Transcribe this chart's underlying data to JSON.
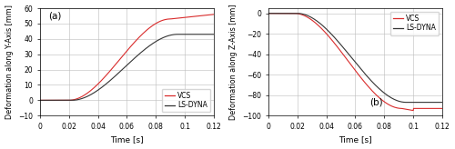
{
  "panel_a": {
    "title": "(a)",
    "xlabel": "Time [s]",
    "ylabel": "Deformation along Y-Axis [mm]",
    "xlim": [
      0,
      0.12
    ],
    "ylim": [
      -10,
      60
    ],
    "yticks": [
      -10,
      0,
      10,
      20,
      30,
      40,
      50,
      60
    ],
    "xticks": [
      0,
      0.02,
      0.04,
      0.06,
      0.08,
      0.1,
      0.12
    ],
    "xtick_labels": [
      "0",
      "0.02",
      "0.04",
      "0.06",
      "0.08",
      "0.1",
      "0.12"
    ],
    "vcs_color": "#d92b2b",
    "lsdyna_color": "#333333"
  },
  "panel_b": {
    "title": "(b)",
    "xlabel": "Time [s]",
    "ylabel": "Deformation along Z-Axis [mm]",
    "xlim": [
      0,
      0.12
    ],
    "ylim": [
      -100,
      5
    ],
    "yticks": [
      -100,
      -80,
      -60,
      -40,
      -20,
      0
    ],
    "xticks": [
      0,
      0.02,
      0.04,
      0.06,
      0.08,
      0.1,
      0.12
    ],
    "xtick_labels": [
      "0",
      "0.02",
      "0.04",
      "0.06",
      "0.08",
      "0.1",
      "0.12"
    ],
    "vcs_color": "#d92b2b",
    "lsdyna_color": "#333333"
  },
  "legend_labels": [
    "VCS",
    "LS-DYNA"
  ],
  "background_color": "#ffffff"
}
